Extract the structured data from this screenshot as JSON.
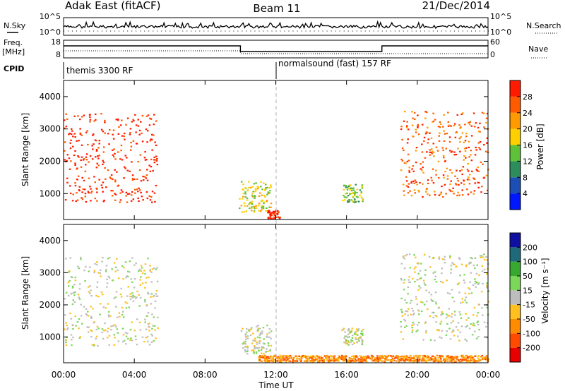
{
  "header": {
    "station": "Adak East (fitACF)",
    "beam": "Beam 11",
    "date": "21/Dec/2014"
  },
  "top_panels": {
    "nsky_label": "N.Sky",
    "nsky_ticks": [
      "10^5",
      "10^0"
    ],
    "nsearch_label": "N.Search",
    "freq_label_line1": "Freq.",
    "freq_label_line2": "[MHz]",
    "freq_ticks": [
      "18",
      "8"
    ],
    "nave_label": "Nave",
    "nave_ticks": [
      "60",
      "0"
    ],
    "cpid_label": "CPID",
    "cpid_modes": [
      "themis 3300 RF",
      "normalsound (fast) 157 RF"
    ]
  },
  "colors": {
    "power": [
      "#0018ff",
      "#1c4eb4",
      "#2d8d5c",
      "#5fc03a",
      "#ffd000",
      "#ff9a00",
      "#ff5a00",
      "#ff1a00"
    ],
    "velocity": [
      "#e80000",
      "#ff4a00",
      "#ff8c00",
      "#ffc020",
      "#bdbdbd",
      "#7bd65a",
      "#38a830",
      "#1e6a7a",
      "#1010a0"
    ]
  },
  "chart_data": [
    {
      "type": "heatmap",
      "title": "Power",
      "ylabel": "Slant Range [km]",
      "xlabel": "",
      "x_ticks": [
        "00:00",
        "04:00",
        "08:00",
        "12:00",
        "16:00",
        "20:00",
        "00:00"
      ],
      "y_ticks": [
        1000,
        2000,
        3000,
        4000
      ],
      "ylim": [
        200,
        4500
      ],
      "colorbar_label": "Power [dB]",
      "colorbar_ticks": [
        4,
        8,
        12,
        16,
        20,
        24,
        28
      ],
      "echo_regions": [
        {
          "t_start": 0.0,
          "t_end": 5.3,
          "r_min": 750,
          "r_max": 3500,
          "level": 28
        },
        {
          "t_start": 9.9,
          "t_end": 11.7,
          "r_min": 450,
          "r_max": 1400,
          "level": 16
        },
        {
          "t_start": 11.5,
          "t_end": 12.2,
          "r_min": 250,
          "r_max": 500,
          "level": 28
        },
        {
          "t_start": 15.7,
          "t_end": 16.9,
          "r_min": 750,
          "r_max": 1300,
          "level": 12
        },
        {
          "t_start": 19.0,
          "t_end": 24.0,
          "r_min": 900,
          "r_max": 3600,
          "level": 24
        }
      ]
    },
    {
      "type": "heatmap",
      "title": "Velocity",
      "ylabel": "Slant Range [km]",
      "xlabel": "Time UT",
      "x_ticks": [
        "00:00",
        "04:00",
        "08:00",
        "12:00",
        "16:00",
        "20:00",
        "00:00"
      ],
      "y_ticks": [
        1000,
        2000,
        3000,
        4000
      ],
      "ylim": [
        200,
        4500
      ],
      "colorbar_label": "Velocity [m s⁻¹]",
      "colorbar_ticks": [
        -200,
        -100,
        -50,
        -15,
        15,
        50,
        100,
        200
      ],
      "echo_regions": [
        {
          "t_start": 0.0,
          "t_end": 5.3,
          "r_min": 750,
          "r_max": 3500,
          "level": 0
        },
        {
          "t_start": 10.0,
          "t_end": 11.7,
          "r_min": 500,
          "r_max": 1400,
          "level": 0
        },
        {
          "t_start": 11.0,
          "t_end": 24.0,
          "r_min": 250,
          "r_max": 450,
          "level": -50
        },
        {
          "t_start": 15.7,
          "t_end": 16.9,
          "r_min": 750,
          "r_max": 1300,
          "level": 0
        },
        {
          "t_start": 19.0,
          "t_end": 24.0,
          "r_min": 900,
          "r_max": 3600,
          "level": 0
        }
      ]
    }
  ]
}
